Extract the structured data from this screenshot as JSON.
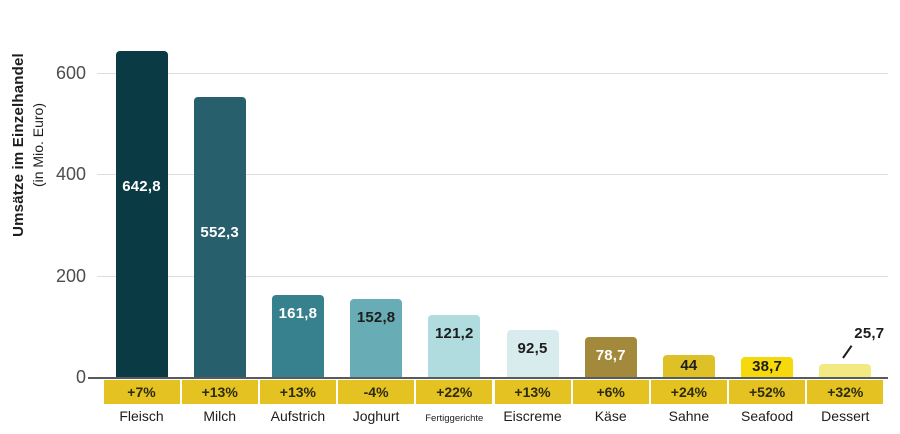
{
  "chart_data": {
    "type": "bar",
    "title": "",
    "ylabel_main": "Umsätze im Einzelhandel",
    "ylabel_sub": "(in Mio. Euro)",
    "ylim": [
      0,
      660
    ],
    "grid": true,
    "y_ticks": [
      0,
      200,
      400,
      600
    ],
    "categories": [
      "Fleisch",
      "Milch",
      "Aufstrich",
      "Joghurt",
      "Fertiggerichte",
      "Eiscreme",
      "Käse",
      "Sahne",
      "Seafood",
      "Dessert"
    ],
    "values": [
      642.8,
      552.3,
      161.8,
      152.8,
      121.2,
      92.5,
      78.7,
      44,
      38.7,
      25.7
    ],
    "value_labels": [
      "642,8",
      "552,3",
      "161,8",
      "152,8",
      "121,2",
      "92,5",
      "78,7",
      "44",
      "38,7",
      "25,7"
    ],
    "pct_change": [
      "+7%",
      "+13%",
      "+13%",
      "-4%",
      "+22%",
      "+13%",
      "+6%",
      "+24%",
      "+52%",
      "+32%"
    ],
    "bar_colors": [
      "#0a3a44",
      "#27606c",
      "#37818f",
      "#68acb5",
      "#b0dbdf",
      "#d8ecee",
      "#a3893b",
      "#ddc127",
      "#f6d90a",
      "#f3e983"
    ],
    "value_label_colors": [
      "#ffffff",
      "#ffffff",
      "#ffffff",
      "#1d1d1b",
      "#1d1d1b",
      "#1d1d1b",
      "#ffffff",
      "#1d1d1b",
      "#1d1d1b",
      "#1d1d1b"
    ],
    "outside_label_index": 9,
    "legend": null
  },
  "colors": {
    "band": "#e3c222",
    "band_text": "#2e2b10",
    "baseline": "#5a5a5a",
    "gridline": "#dedede",
    "tick_text": "#4d4d4d",
    "category_text": "#1d1d1b"
  }
}
